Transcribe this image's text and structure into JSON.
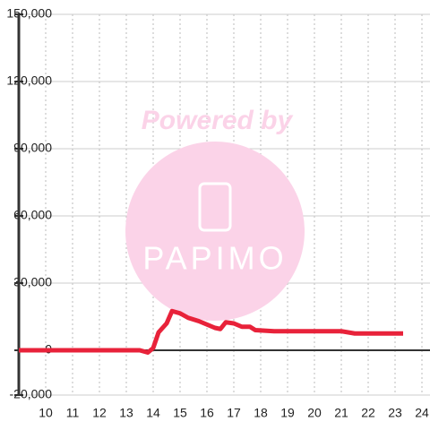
{
  "chart_data": {
    "type": "line",
    "x": [
      9,
      13.5,
      13.8,
      14,
      14.2,
      14.5,
      14.7,
      15,
      15.3,
      15.7,
      16,
      16.3,
      16.5,
      16.7,
      17,
      17.3,
      17.6,
      17.8,
      18.5,
      19,
      20,
      21,
      21.5,
      22,
      23.3
    ],
    "series": [
      {
        "color": "#e8223a",
        "values": [
          0,
          0,
          -1000,
          1000,
          8000,
          12000,
          17500,
          16500,
          14500,
          13000,
          11500,
          10000,
          9500,
          12500,
          12000,
          10500,
          10500,
          9000,
          8500,
          8500,
          8500,
          8500,
          7500,
          7500,
          7500
        ]
      }
    ],
    "xlim": [
      9,
      24.3
    ],
    "xticks": [
      10,
      11,
      12,
      13,
      14,
      15,
      16,
      17,
      18,
      19,
      20,
      21,
      22,
      23,
      24
    ],
    "ylim": [
      -20000,
      150000
    ],
    "yticks": [
      {
        "value": -20000,
        "label": "-20,000"
      },
      0,
      {
        "value": 30000,
        "label": "30,000"
      },
      {
        "value": 60000,
        "label": "60,000"
      },
      {
        "value": 90000,
        "label": "90,000"
      },
      {
        "value": 120000,
        "label": "120,000"
      },
      {
        "value": 150000,
        "label": "150,000"
      }
    ],
    "grid": true,
    "watermark": {
      "text": "Powered by",
      "logo": "PAPIMO"
    }
  }
}
